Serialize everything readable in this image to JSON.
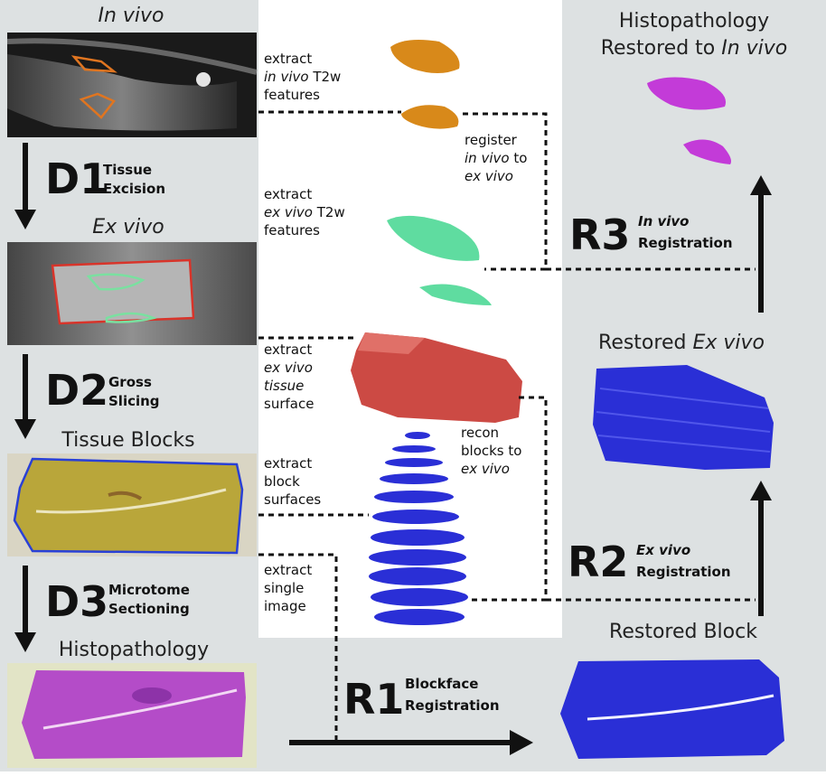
{
  "stages": {
    "in_vivo": "In vivo",
    "ex_vivo": "Ex vivo",
    "tissue_blocks": "Tissue Blocks",
    "histopathology": "Histopathology"
  },
  "data_steps": [
    {
      "code": "D1",
      "line1": "Tissue",
      "line2": "Excision"
    },
    {
      "code": "D2",
      "line1": "Gross",
      "line2": "Slicing"
    },
    {
      "code": "D3",
      "line1": "Microtome",
      "line2": "Sectioning"
    }
  ],
  "reg_steps": [
    {
      "code": "R1",
      "line1": "Blockface",
      "line2": "Registration"
    },
    {
      "code": "R2",
      "line1": "Ex vivo",
      "line2": "Registration"
    },
    {
      "code": "R3",
      "line1": "In vivo",
      "line2": "Registration"
    }
  ],
  "restored": {
    "histo_line1": "Histopathology",
    "histo_line2a": "Restored to ",
    "histo_line2b": "In vivo",
    "ex_vivo_a": "Restored ",
    "ex_vivo_b": "Ex vivo",
    "block": "Restored Block"
  },
  "notes": {
    "in_vivo_1": "extract",
    "in_vivo_2a": "in vivo",
    "in_vivo_2b": " T2w",
    "in_vivo_3": "features",
    "register_1": "register",
    "register_2a": "in vivo",
    "register_2b": " to",
    "register_3": "ex vivo",
    "ex_vivo_1": "extract",
    "ex_vivo_2a": "ex vivo",
    "ex_vivo_2b": " T2w",
    "ex_vivo_3": "features",
    "tissue_1": "extract",
    "tissue_2": "ex vivo",
    "tissue_3": "tissue",
    "tissue_4": "surface",
    "recon_1": "recon",
    "recon_2": "blocks to",
    "recon_3": "ex vivo",
    "block_1": "extract",
    "block_2": "block",
    "block_3": "surfaces",
    "single_1": "extract",
    "single_2": "single",
    "single_3": "image"
  },
  "colors": {
    "panel_gray": "#dde1e2",
    "orange": "#d8891a",
    "green": "#5fdca0",
    "red": "#cc4a44",
    "blue": "#2a2fd6",
    "magenta": "#c33bd8",
    "tissue": "#b9a63a",
    "histo": "#b44cc8"
  }
}
